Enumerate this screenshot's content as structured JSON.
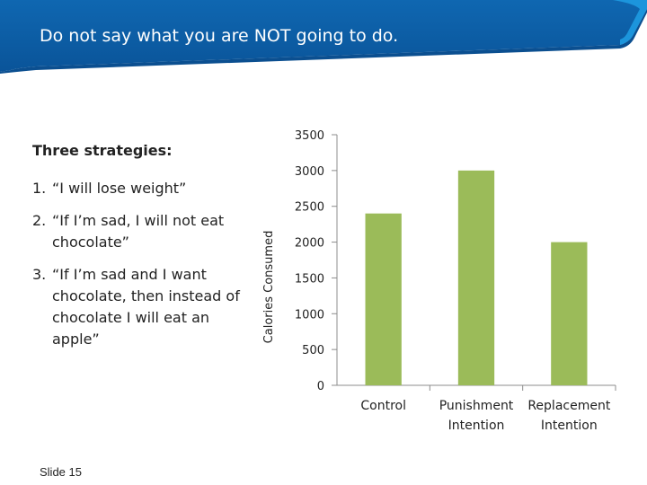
{
  "slide": {
    "title": "Do not say what you are NOT going to do.",
    "strategies_heading": "Three strategies:",
    "strategies": [
      {
        "num": "1.",
        "text": "“I will lose weight”"
      },
      {
        "num": "2.",
        "text": "“If I’m sad, I will not eat chocolate”"
      },
      {
        "num": "3.",
        "text": "“If I’m sad and I want chocolate, then instead of chocolate I will eat an apple”"
      }
    ],
    "slide_number": "Slide 15"
  },
  "colors": {
    "header_blue": "#0a5ea8",
    "header_light": "#1b8fd6",
    "bar_green": "#9bbb59",
    "axis": "#8c8c8c"
  },
  "chart_data": {
    "type": "bar",
    "title": "",
    "xlabel": "",
    "ylabel": "Calories Consumed",
    "ylim": [
      0,
      3500
    ],
    "yticks": [
      0,
      500,
      1000,
      1500,
      2000,
      2500,
      3000,
      3500
    ],
    "categories": [
      [
        "Control"
      ],
      [
        "Punishment",
        "Intention"
      ],
      [
        "Replacement",
        "Intention"
      ]
    ],
    "values": [
      2400,
      3000,
      2000
    ],
    "grid": false,
    "legend": "none"
  }
}
